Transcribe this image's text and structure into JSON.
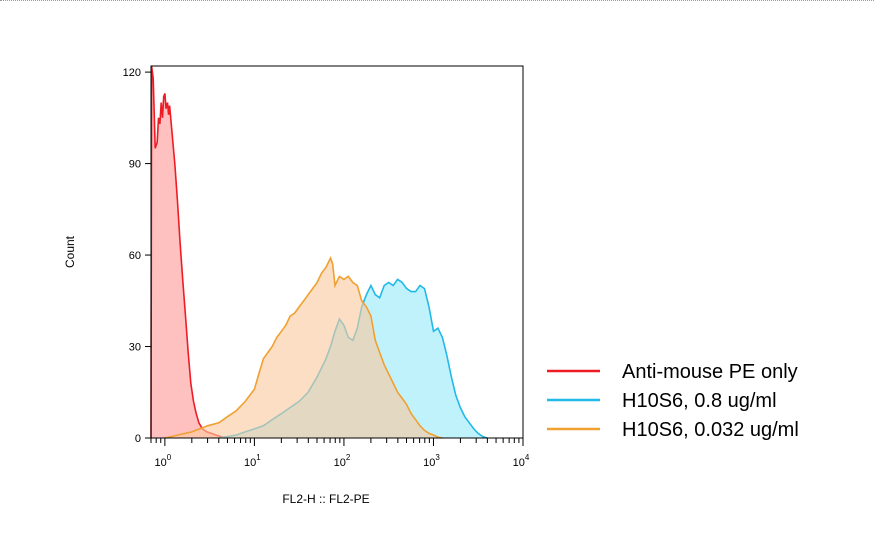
{
  "chart_data": {
    "type": "area",
    "xlabel": "FL2-H :: FL2-PE",
    "ylabel": "Count",
    "x_scale": "log",
    "xlim": [
      0.7,
      10000
    ],
    "ylim": [
      0,
      122
    ],
    "x_ticks": [
      {
        "value": 1,
        "base": "10",
        "exp": "0"
      },
      {
        "value": 10,
        "base": "10",
        "exp": "1"
      },
      {
        "value": 100,
        "base": "10",
        "exp": "2"
      },
      {
        "value": 1000,
        "base": "10",
        "exp": "3"
      },
      {
        "value": 10000,
        "base": "10",
        "exp": "4"
      }
    ],
    "y_ticks": [
      {
        "value": 0,
        "label": "0"
      },
      {
        "value": 30,
        "label": "30"
      },
      {
        "value": 60,
        "label": "60"
      },
      {
        "value": 90,
        "label": "90"
      },
      {
        "value": 120,
        "label": "120"
      }
    ],
    "grid": false,
    "legend_position": "right",
    "series": [
      {
        "name": "Anti-mouse PE only",
        "line_color": "#ee1c25",
        "fill_color": "#ff9a9a",
        "points": [
          [
            0.7,
            0
          ],
          [
            0.71,
            122
          ],
          [
            0.74,
            118
          ],
          [
            0.78,
            95
          ],
          [
            0.82,
            97
          ],
          [
            0.85,
            105
          ],
          [
            0.88,
            103
          ],
          [
            0.91,
            110
          ],
          [
            0.94,
            105
          ],
          [
            0.97,
            112
          ],
          [
            1.0,
            113
          ],
          [
            1.03,
            108
          ],
          [
            1.07,
            110
          ],
          [
            1.1,
            106
          ],
          [
            1.13,
            109
          ],
          [
            1.17,
            104
          ],
          [
            1.22,
            98
          ],
          [
            1.29,
            90
          ],
          [
            1.38,
            78
          ],
          [
            1.48,
            64
          ],
          [
            1.58,
            52
          ],
          [
            1.7,
            40
          ],
          [
            1.82,
            28
          ],
          [
            1.95,
            18
          ],
          [
            2.09,
            12
          ],
          [
            2.24,
            8
          ],
          [
            2.4,
            5
          ],
          [
            2.63,
            3
          ],
          [
            2.95,
            2
          ],
          [
            3.31,
            1.5
          ],
          [
            3.72,
            1
          ],
          [
            4.17,
            0.5
          ],
          [
            4.68,
            0
          ]
        ]
      },
      {
        "name": "H10S6, 0.8 ug/ml",
        "line_color": "#21b9e8",
        "fill_color": "#99eafa",
        "points": [
          [
            4.0,
            0
          ],
          [
            5.0,
            0.5
          ],
          [
            6.3,
            1
          ],
          [
            7.9,
            2
          ],
          [
            10.0,
            3
          ],
          [
            12.6,
            4
          ],
          [
            15.8,
            6
          ],
          [
            20.0,
            8
          ],
          [
            25.1,
            10
          ],
          [
            31.6,
            12
          ],
          [
            39.8,
            15
          ],
          [
            50.1,
            20
          ],
          [
            63.1,
            26
          ],
          [
            70.8,
            30
          ],
          [
            79.4,
            35
          ],
          [
            89.1,
            39
          ],
          [
            100,
            37
          ],
          [
            112,
            33
          ],
          [
            126,
            32
          ],
          [
            141,
            36
          ],
          [
            158,
            43
          ],
          [
            178,
            47
          ],
          [
            200,
            50
          ],
          [
            224,
            47
          ],
          [
            251,
            46
          ],
          [
            282,
            50
          ],
          [
            316,
            51
          ],
          [
            355,
            50
          ],
          [
            398,
            52
          ],
          [
            447,
            51
          ],
          [
            501,
            49
          ],
          [
            562,
            48
          ],
          [
            631,
            48
          ],
          [
            708,
            50
          ],
          [
            794,
            49
          ],
          [
            891,
            43
          ],
          [
            1000,
            35
          ],
          [
            1122,
            36
          ],
          [
            1259,
            33
          ],
          [
            1413,
            27
          ],
          [
            1585,
            20
          ],
          [
            1778,
            14
          ],
          [
            1995,
            10
          ],
          [
            2239,
            7
          ],
          [
            2512,
            5
          ],
          [
            2818,
            3
          ],
          [
            3162,
            1.5
          ],
          [
            3548,
            0.5
          ],
          [
            3981,
            0
          ]
        ]
      },
      {
        "name": "H10S6, 0.032 ug/ml",
        "line_color": "#f0a030",
        "fill_color": "#f9c9a0",
        "points": [
          [
            1.0,
            0
          ],
          [
            2.0,
            2
          ],
          [
            3.0,
            4
          ],
          [
            4.0,
            5
          ],
          [
            5.0,
            7
          ],
          [
            6.3,
            9
          ],
          [
            7.9,
            12
          ],
          [
            10.0,
            16
          ],
          [
            11.2,
            21
          ],
          [
            12.6,
            26
          ],
          [
            14.1,
            28
          ],
          [
            15.8,
            30
          ],
          [
            17.8,
            33
          ],
          [
            20.0,
            35
          ],
          [
            22.4,
            37
          ],
          [
            25.1,
            40
          ],
          [
            28.2,
            41
          ],
          [
            31.6,
            43
          ],
          [
            35.5,
            45
          ],
          [
            39.8,
            47
          ],
          [
            44.7,
            49
          ],
          [
            50.1,
            51
          ],
          [
            56.2,
            54
          ],
          [
            63.1,
            56
          ],
          [
            70.8,
            59
          ],
          [
            74.9,
            57
          ],
          [
            79.4,
            50
          ],
          [
            89.1,
            53
          ],
          [
            100,
            52
          ],
          [
            112,
            53
          ],
          [
            126,
            51
          ],
          [
            141,
            50
          ],
          [
            158,
            45
          ],
          [
            178,
            43
          ],
          [
            200,
            40
          ],
          [
            224,
            32
          ],
          [
            251,
            28
          ],
          [
            282,
            24
          ],
          [
            316,
            21
          ],
          [
            355,
            18
          ],
          [
            398,
            15
          ],
          [
            447,
            13
          ],
          [
            501,
            11
          ],
          [
            562,
            8
          ],
          [
            631,
            6
          ],
          [
            708,
            4
          ],
          [
            794,
            2.5
          ],
          [
            891,
            1.5
          ],
          [
            1000,
            1
          ],
          [
            1122,
            0.3
          ],
          [
            1259,
            0
          ]
        ]
      }
    ]
  }
}
